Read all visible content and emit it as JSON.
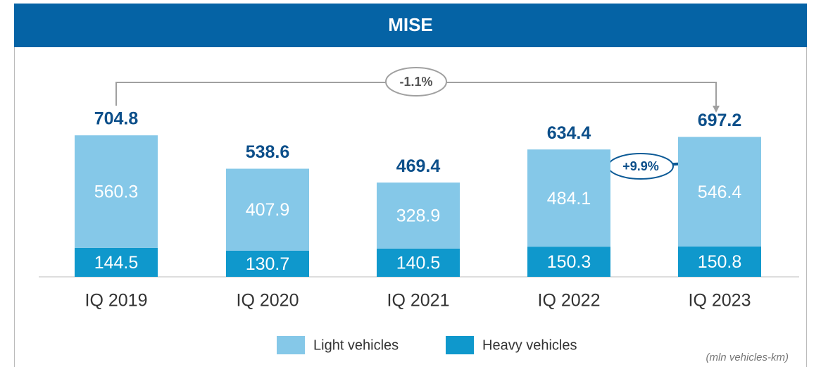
{
  "chart_data": {
    "type": "stacked_bar",
    "title": "MISE",
    "categories": [
      "IQ 2019",
      "IQ 2020",
      "IQ 2021",
      "IQ 2022",
      "IQ 2023"
    ],
    "series": [
      {
        "name": "Light vehicles",
        "color": "#85c8e8",
        "values": [
          560.3,
          407.9,
          328.9,
          484.1,
          546.4
        ]
      },
      {
        "name": "Heavy vehicles",
        "color": "#0f98cc",
        "values": [
          144.5,
          130.7,
          140.5,
          150.3,
          150.8
        ]
      }
    ],
    "totals": [
      704.8,
      538.6,
      469.4,
      634.4,
      697.2
    ],
    "annotations": [
      "-1.1%",
      "+9.9%"
    ],
    "unit_note": "(mln vehicles-km)"
  }
}
